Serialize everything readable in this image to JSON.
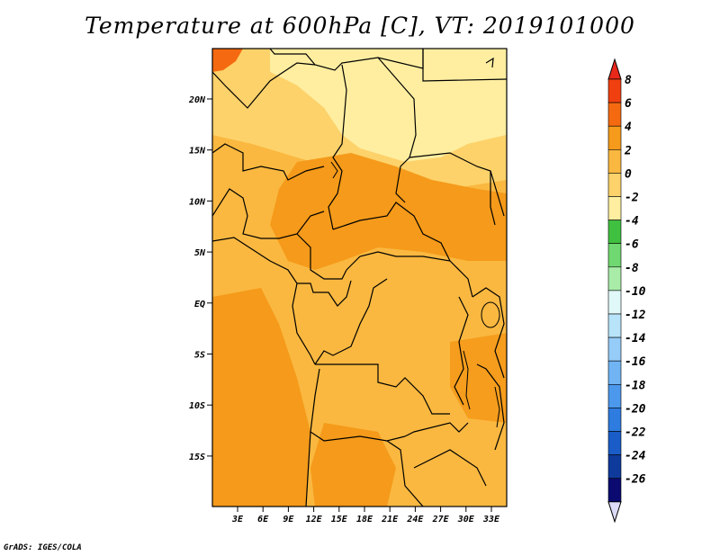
{
  "title": "Temperature at 600hPa [C], VT: 2019101000",
  "credit": "GrADS: IGES/COLA",
  "map": {
    "lat_labels": [
      "20N",
      "15N",
      "10N",
      "5N",
      "EQ",
      "5S",
      "10S",
      "15S"
    ],
    "lon_labels": [
      "3E",
      "6E",
      "9E",
      "12E",
      "15E",
      "18E",
      "21E",
      "24E",
      "27E",
      "30E",
      "33E"
    ]
  },
  "colorbar": {
    "labels": [
      "8",
      "6",
      "4",
      "2",
      "0",
      "-2",
      "-4",
      "-6",
      "-8",
      "-10",
      "-12",
      "-14",
      "-16",
      "-18",
      "-20",
      "-22",
      "-24",
      "-26"
    ],
    "colors": [
      "#f04010",
      "#f56a10",
      "#f59a1a",
      "#fab840",
      "#fdd26a",
      "#ffeea0",
      "#40c040",
      "#70d870",
      "#a8eca8",
      "#e0f8f8",
      "#b8e4fa",
      "#96ccf8",
      "#70b4f4",
      "#4c98ec",
      "#2e7ce0",
      "#1a5cc8",
      "#0e3a9c",
      "#0a0a70"
    ],
    "top_color": "#e8281a",
    "bottom_color": "#dcdcf8"
  }
}
